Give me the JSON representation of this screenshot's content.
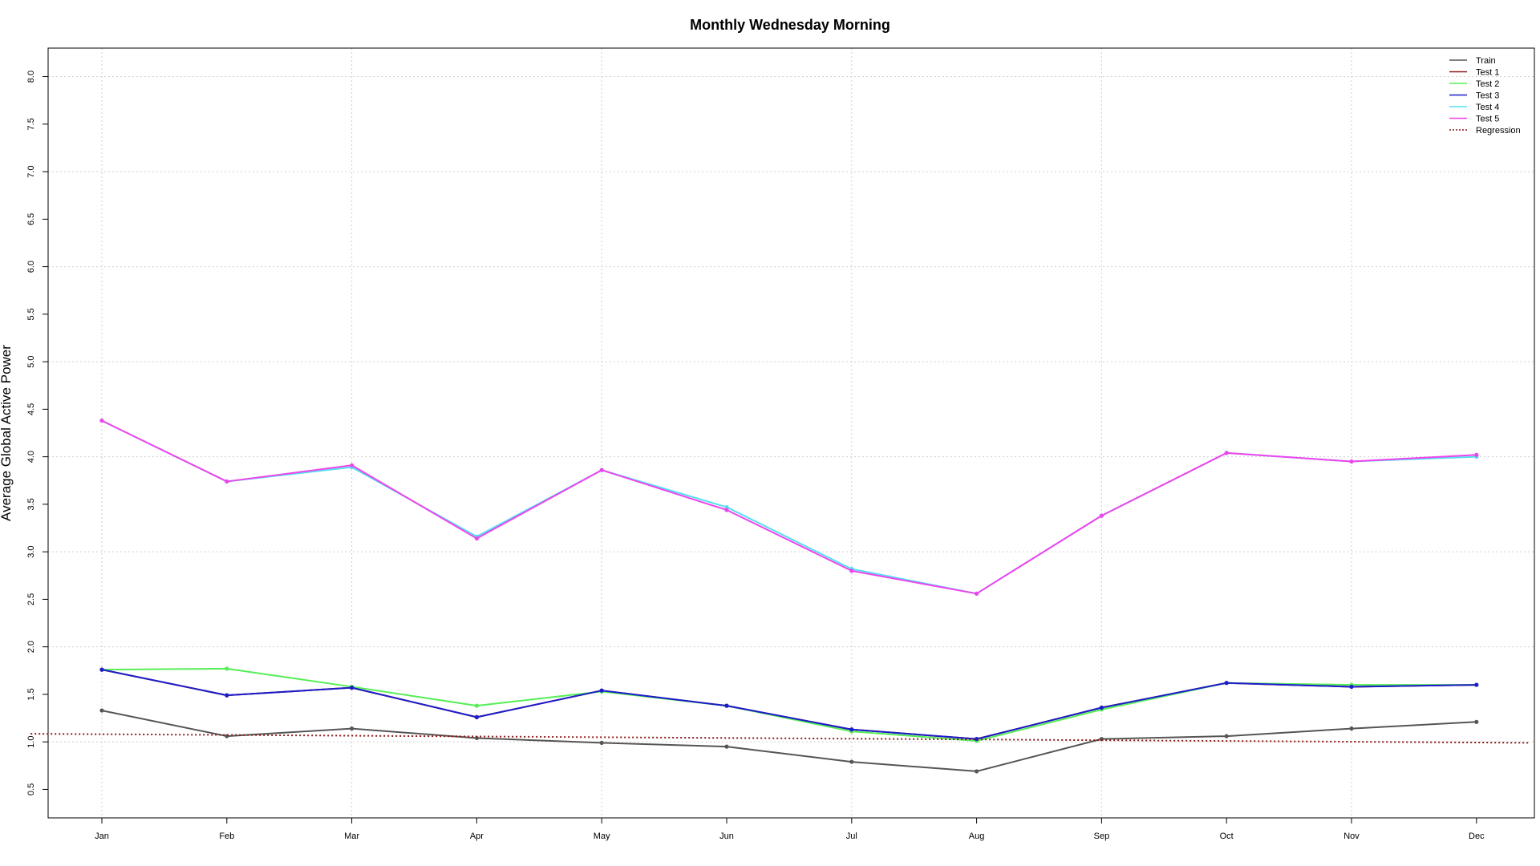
{
  "chart_data": {
    "type": "line",
    "title": "Monthly Wednesday Morning",
    "xlabel": "",
    "ylabel": "Average Global Active Power",
    "categories": [
      "Jan",
      "Feb",
      "Mar",
      "Apr",
      "May",
      "Jun",
      "Jul",
      "Aug",
      "Sep",
      "Oct",
      "Nov",
      "Dec"
    ],
    "ylim": [
      0.2,
      8.3
    ],
    "yticks": [
      0.5,
      1.0,
      1.5,
      2.0,
      2.5,
      3.0,
      3.5,
      4.0,
      4.5,
      5.0,
      5.5,
      6.0,
      6.5,
      7.0,
      7.5,
      8.0
    ],
    "ytick_labels": [
      "0.5",
      "1.0",
      "1.5",
      "2.0",
      "2.5",
      "3.0",
      "3.5",
      "4.0",
      "4.5",
      "5.0",
      "5.5",
      "6.0",
      "6.5",
      "7.0",
      "7.5",
      "8.0"
    ],
    "grid": true,
    "legend_position": "top-right",
    "series": [
      {
        "name": "Train",
        "color": "#555555",
        "style": "solid",
        "markers": true,
        "values": [
          1.33,
          1.06,
          1.14,
          1.04,
          0.99,
          0.95,
          0.79,
          0.69,
          1.03,
          1.06,
          1.14,
          1.21
        ]
      },
      {
        "name": "Test 1",
        "color": "#8b1a1a",
        "style": "solid",
        "markers": true,
        "values": [
          1.76,
          1.49,
          1.57,
          1.26,
          1.54,
          1.38,
          1.13,
          1.03,
          1.36,
          1.62,
          1.58,
          1.6
        ]
      },
      {
        "name": "Test 2",
        "color": "#55ee55",
        "style": "solid",
        "markers": true,
        "values": [
          1.76,
          1.77,
          1.58,
          1.38,
          1.53,
          1.38,
          1.11,
          1.01,
          1.34,
          1.62,
          1.6,
          1.6
        ]
      },
      {
        "name": "Test 3",
        "color": "#1c1ccc",
        "style": "solid",
        "markers": true,
        "values": [
          1.76,
          1.49,
          1.57,
          1.26,
          1.54,
          1.38,
          1.13,
          1.03,
          1.36,
          1.62,
          1.58,
          1.6
        ]
      },
      {
        "name": "Test 4",
        "color": "#55dfee",
        "style": "solid",
        "markers": true,
        "values": [
          4.38,
          3.74,
          3.89,
          3.16,
          3.86,
          3.47,
          2.82,
          2.56,
          3.38,
          4.04,
          3.95,
          4.0
        ]
      },
      {
        "name": "Test 5",
        "color": "#ee44ee",
        "style": "solid",
        "markers": true,
        "values": [
          4.38,
          3.74,
          3.91,
          3.14,
          3.86,
          3.44,
          2.8,
          2.56,
          3.38,
          4.04,
          3.95,
          4.02
        ]
      },
      {
        "name": "Regression",
        "color": "#8b1a1a",
        "style": "dotted",
        "markers": false,
        "x_extent": [
          0.43,
          12.43
        ],
        "values_at_extent": [
          1.085,
          0.99
        ]
      }
    ]
  }
}
